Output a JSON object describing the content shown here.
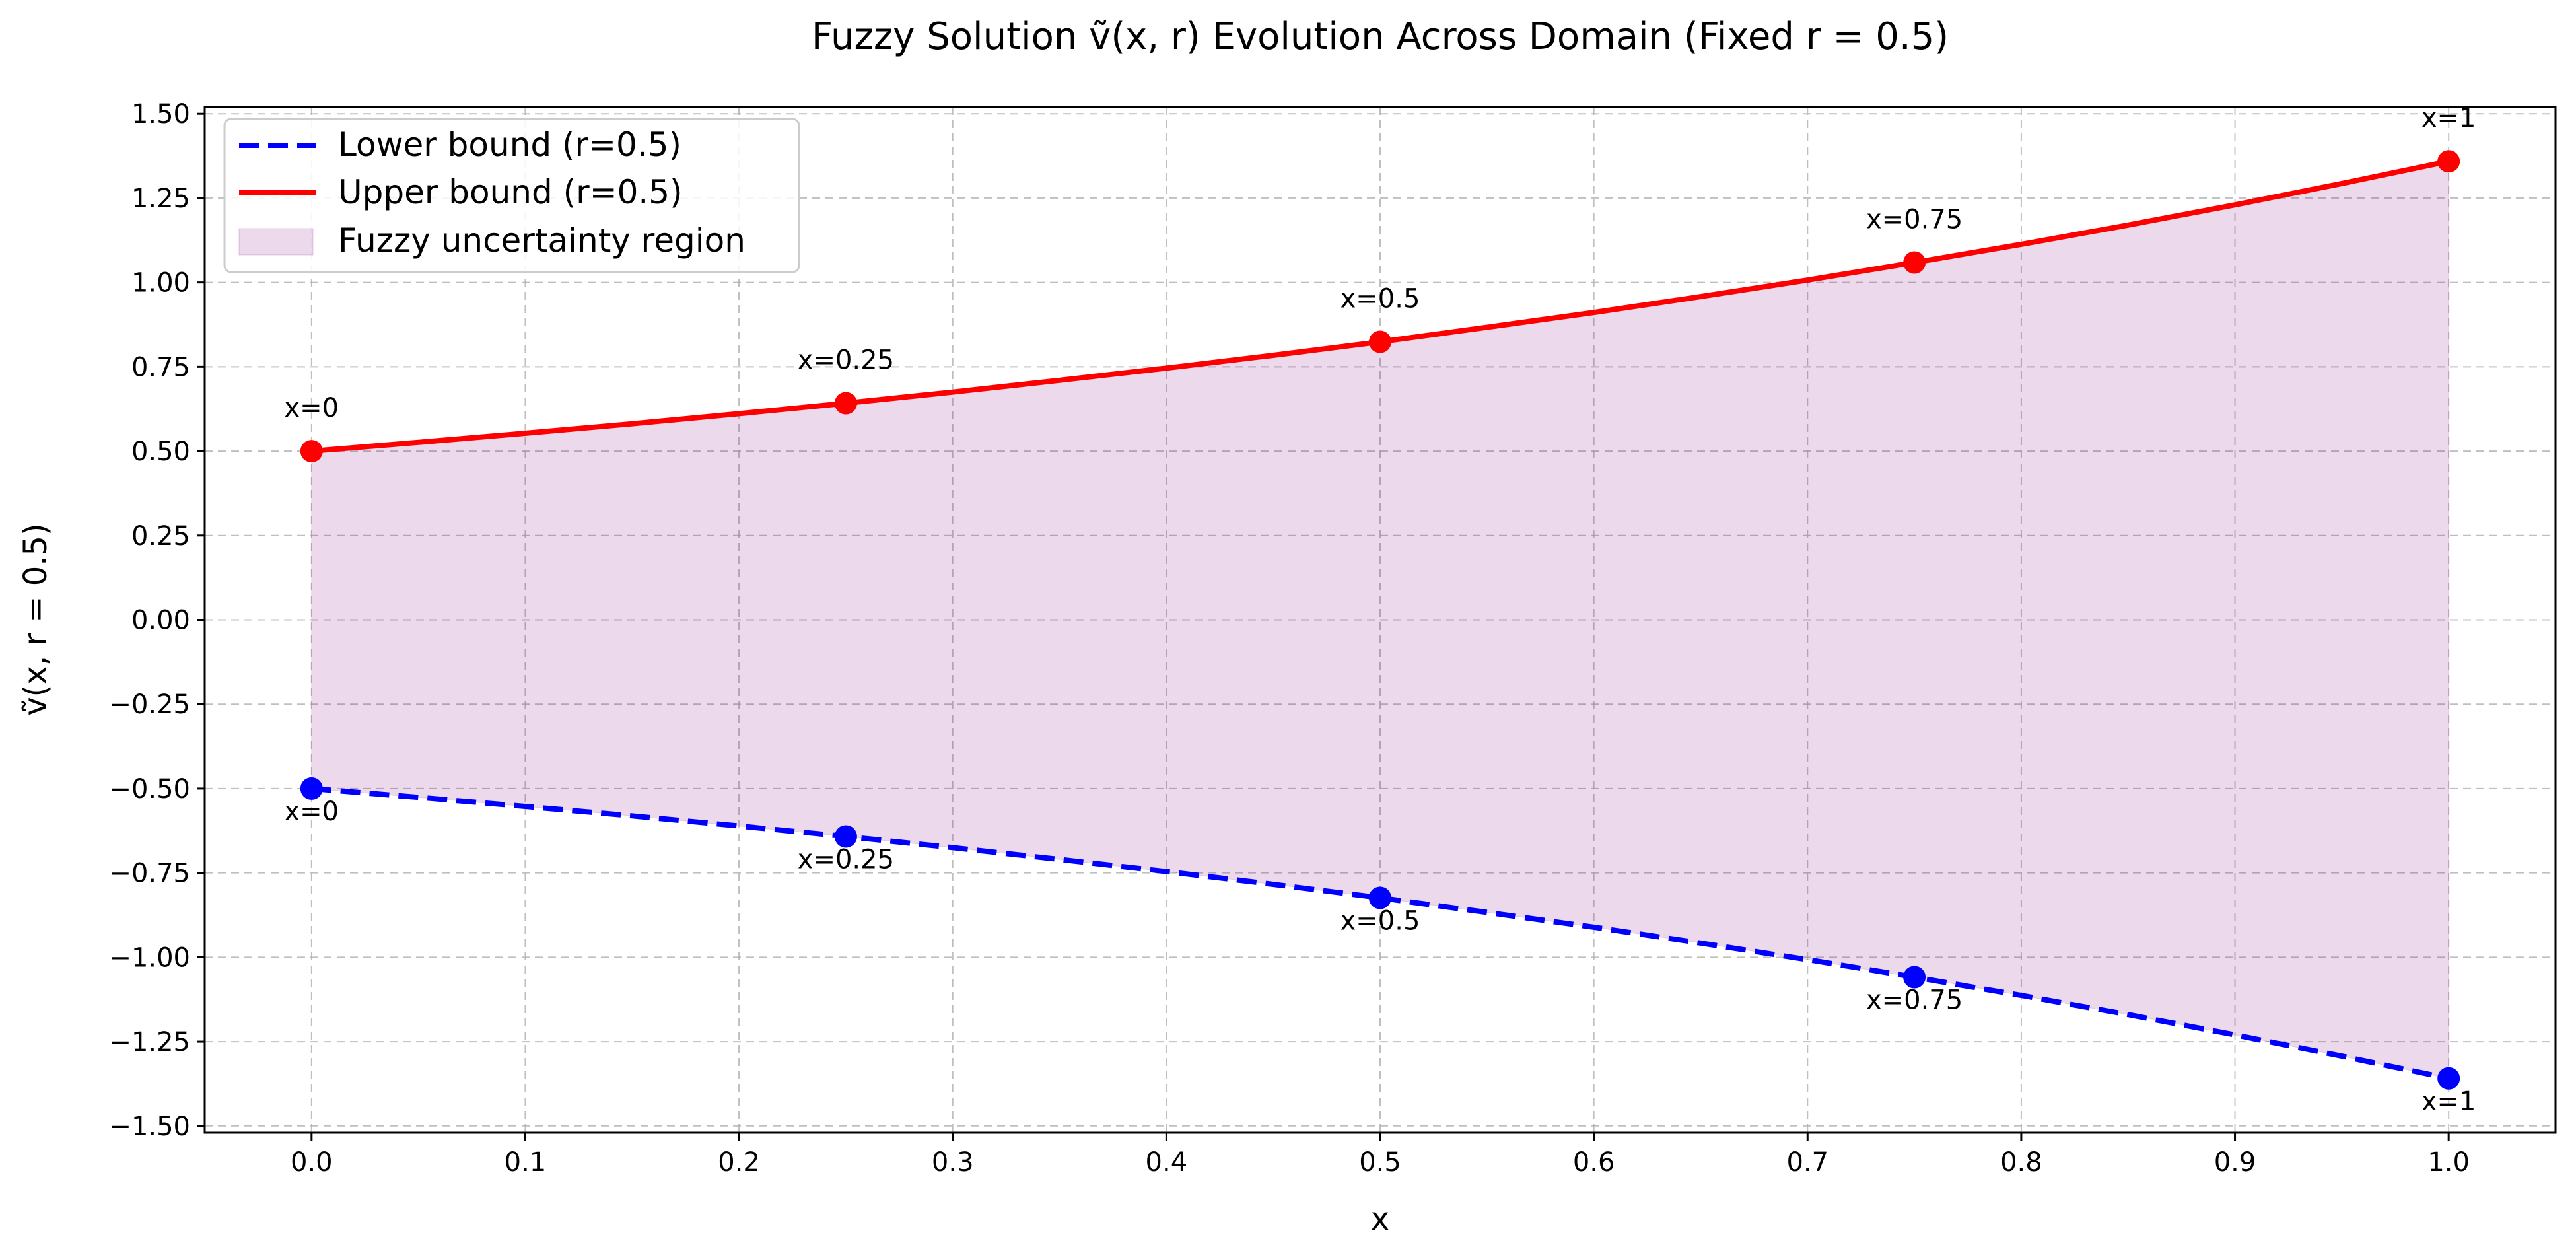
{
  "chart_data": {
    "type": "line",
    "title": "Fuzzy Solution ṽ(x, r) Evolution Across Domain (Fixed r = 0.5)",
    "xlabel": "x",
    "ylabel": "ṽ(x, r = 0.5)",
    "xlim": [
      -0.05,
      1.05
    ],
    "ylim": [
      -1.52,
      1.52
    ],
    "grid": true,
    "legend_position": "top-left",
    "x_ticks": [
      0.0,
      0.1,
      0.2,
      0.3,
      0.4,
      0.5,
      0.6,
      0.7,
      0.8,
      0.9,
      1.0
    ],
    "x_tick_labels": [
      "0.0",
      "0.1",
      "0.2",
      "0.3",
      "0.4",
      "0.5",
      "0.6",
      "0.7",
      "0.8",
      "0.9",
      "1.0"
    ],
    "y_ticks": [
      -1.5,
      -1.25,
      -1.0,
      -0.75,
      -0.5,
      -0.25,
      0.0,
      0.25,
      0.5,
      0.75,
      1.0,
      1.25,
      1.5
    ],
    "y_tick_labels": [
      "−1.50",
      "−1.25",
      "−1.00",
      "−0.75",
      "−0.50",
      "−0.25",
      "0.00",
      "0.25",
      "0.50",
      "0.75",
      "1.00",
      "1.25",
      "1.50"
    ],
    "series": [
      {
        "name": "Lower bound (r=0.5)",
        "color": "#0000ff",
        "style": "dashed",
        "x": [
          0.0,
          0.05,
          0.1,
          0.15,
          0.2,
          0.25,
          0.3,
          0.35,
          0.4,
          0.45,
          0.5,
          0.55,
          0.6,
          0.65,
          0.7,
          0.75,
          0.8,
          0.85,
          0.9,
          0.95,
          1.0
        ],
        "y": [
          -0.5,
          -0.526,
          -0.553,
          -0.581,
          -0.611,
          -0.642,
          -0.675,
          -0.71,
          -0.746,
          -0.784,
          -0.824,
          -0.867,
          -0.911,
          -0.958,
          -1.007,
          -1.059,
          -1.113,
          -1.17,
          -1.23,
          -1.293,
          -1.359
        ]
      },
      {
        "name": "Upper bound (r=0.5)",
        "color": "#ff0000",
        "style": "solid",
        "x": [
          0.0,
          0.05,
          0.1,
          0.15,
          0.2,
          0.25,
          0.3,
          0.35,
          0.4,
          0.45,
          0.5,
          0.55,
          0.6,
          0.65,
          0.7,
          0.75,
          0.8,
          0.85,
          0.9,
          0.95,
          1.0
        ],
        "y": [
          0.5,
          0.526,
          0.553,
          0.581,
          0.611,
          0.642,
          0.675,
          0.71,
          0.746,
          0.784,
          0.824,
          0.867,
          0.911,
          0.958,
          1.007,
          1.059,
          1.113,
          1.17,
          1.23,
          1.293,
          1.359
        ]
      }
    ],
    "fill": {
      "name": "Fuzzy uncertainty region",
      "color": "#800080",
      "opacity": 0.15
    },
    "markers": {
      "x": [
        0.0,
        0.25,
        0.5,
        0.75,
        1.0
      ],
      "upper": [
        0.5,
        0.642,
        0.824,
        1.059,
        1.359
      ],
      "lower": [
        -0.5,
        -0.642,
        -0.824,
        -1.059,
        -1.359
      ],
      "labels": [
        "x=0",
        "x=0.25",
        "x=0.5",
        "x=0.75",
        "x=1"
      ]
    }
  }
}
